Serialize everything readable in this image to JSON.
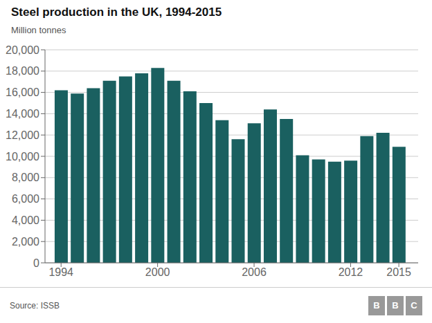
{
  "chart_data": {
    "type": "bar",
    "title": "Steel production in the UK, 1994-2015",
    "ylabel": "Million tonnes",
    "annotations": [
      "Source: ISSB"
    ],
    "logo": {
      "letters": [
        "B",
        "B",
        "C"
      ],
      "color": "#999999"
    },
    "x": [
      1994,
      1995,
      1996,
      1997,
      1998,
      1999,
      2000,
      2001,
      2002,
      2003,
      2004,
      2005,
      2006,
      2007,
      2008,
      2009,
      2010,
      2011,
      2012,
      2013,
      2014,
      2015
    ],
    "values": [
      16200,
      15900,
      16400,
      17100,
      17500,
      17800,
      18300,
      17100,
      16100,
      15000,
      13400,
      11600,
      13100,
      14400,
      13500,
      10100,
      9700,
      9500,
      9600,
      11900,
      12200,
      10900
    ],
    "color": "#1a6060",
    "xlim": [
      1993,
      2016.2
    ],
    "xticks": [
      1994,
      2000,
      2006,
      2012,
      2015
    ],
    "ylim": [
      0,
      20000
    ],
    "yticks": [
      0,
      {
        "value": 2000,
        "label": "2,000"
      },
      {
        "value": 4000,
        "label": "4,000"
      },
      {
        "value": 6000,
        "label": "6,000"
      },
      {
        "value": 8000,
        "label": "8,000"
      },
      {
        "value": 10000,
        "label": "10,000"
      },
      {
        "value": 12000,
        "label": "12,000"
      },
      {
        "value": 14000,
        "label": "14,000"
      },
      {
        "value": 16000,
        "label": "16,000"
      },
      {
        "value": 18000,
        "label": "18,000"
      },
      {
        "value": 20000,
        "label": "20,000"
      }
    ],
    "grid": true
  }
}
